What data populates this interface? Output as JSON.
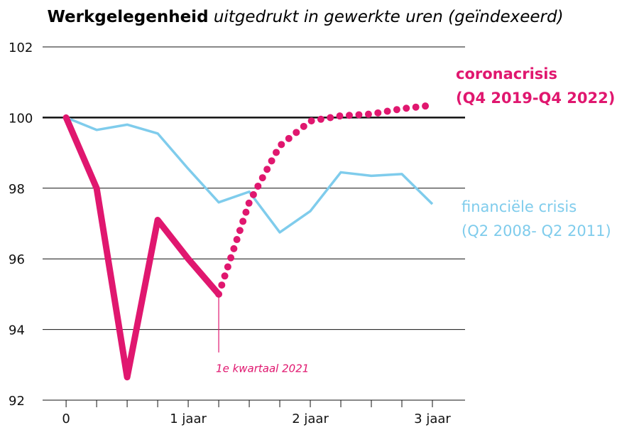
{
  "chart_data": {
    "type": "line",
    "title": "Werkgelegenheid",
    "subtitle": "uitgedrukt in gewerkte uren (geïndexeerd)",
    "x": [
      0,
      1,
      2,
      3,
      4,
      5,
      6,
      7,
      8,
      9,
      10,
      11,
      12
    ],
    "xlim": [
      -0.77,
      13.07
    ],
    "xticks": [
      0,
      {
        "value": 4,
        "label": "1 jaar"
      },
      {
        "value": 8,
        "label": "2 jaar"
      },
      {
        "value": 12,
        "label": "3 jaar"
      }
    ],
    "ylim": [
      92,
      102
    ],
    "yticks": [
      92,
      94,
      96,
      98,
      100,
      102
    ],
    "reference_line": 100,
    "grid": true,
    "series": [
      {
        "name": "coronacrisis",
        "period": "(Q4 2019-Q4 2022)",
        "color": "#e0176f",
        "style": "solid",
        "values": [
          100,
          98,
          92.65,
          97.1,
          96.0,
          95.0,
          null,
          null,
          null,
          null,
          null,
          null,
          null
        ]
      },
      {
        "color": "#e0176f",
        "style": "dotted",
        "values": [
          null,
          null,
          null,
          null,
          null,
          95.0,
          97.6,
          99.2,
          99.9,
          100.05,
          100.1,
          100.25,
          100.35
        ]
      },
      {
        "name": "financiële crisis",
        "period": "(Q2 2008- Q2 2011)",
        "color": "#7fccec",
        "style": "thin",
        "values": [
          100,
          99.65,
          99.8,
          99.55,
          98.55,
          97.6,
          97.9,
          96.75,
          97.35,
          98.45,
          98.35,
          98.4,
          97.55
        ]
      }
    ],
    "annotations": [
      {
        "text": "1e kwartaal 2021",
        "x": 5,
        "y": 95.0
      }
    ]
  }
}
